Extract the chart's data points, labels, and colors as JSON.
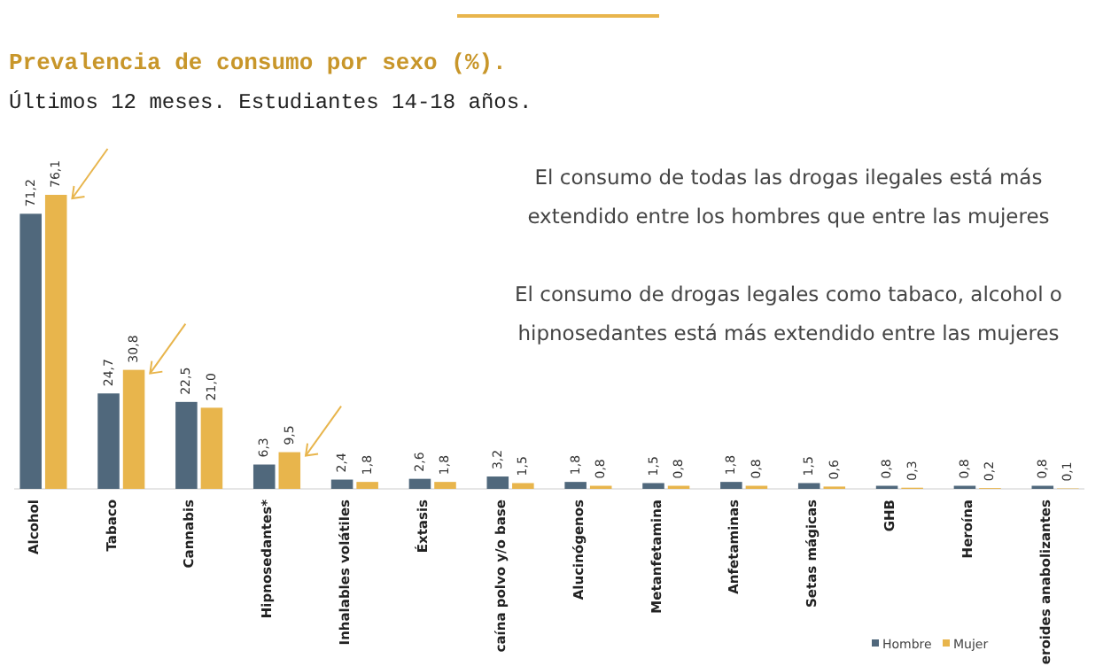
{
  "chart_data": {
    "type": "bar",
    "title": "Prevalencia de consumo por sexo (%).",
    "subtitle": "Últimos 12 meses. Estudiantes 14-18 años.",
    "categories": [
      "Alcohol",
      "Tabaco",
      "Cannabis",
      "Hipnosedantes*",
      "Inhalables volátiles",
      "Éxtasis",
      "caína polvo y/o base",
      "Alucinógenos",
      "Metanfetamina",
      "Anfetaminas",
      "Setas mágicas",
      "GHB",
      "Heroína",
      "eroides anabolizantes"
    ],
    "series": [
      {
        "name": "Hombre",
        "color": "#50687c",
        "values": [
          71.2,
          24.7,
          22.5,
          6.3,
          2.4,
          2.6,
          3.2,
          1.8,
          1.5,
          1.8,
          1.5,
          0.8,
          0.8,
          0.8
        ],
        "value_labels": [
          "71,2",
          "24,7",
          "22,5",
          "6,3",
          "2,4",
          "2,6",
          "3,2",
          "1,8",
          "1,5",
          "1,8",
          "1,5",
          "0,8",
          "0,8",
          "0,8"
        ]
      },
      {
        "name": "Mujer",
        "color": "#e8b54c",
        "values": [
          76.1,
          30.8,
          21.0,
          9.5,
          1.8,
          1.8,
          1.5,
          0.8,
          0.8,
          0.8,
          0.6,
          0.3,
          0.2,
          0.1
        ],
        "value_labels": [
          "76,1",
          "30,8",
          "21,0",
          "9,5",
          "1,8",
          "1,8",
          "1,5",
          "0,8",
          "0,8",
          "0,8",
          "0,6",
          "0,3",
          "0,2",
          "0,1"
        ]
      }
    ],
    "legend": "bottom right",
    "annotations": [
      "El consumo de todas las drogas ilegales está más extendido entre los hombres que entre las mujeres",
      "El consumo de drogas legales como tabaco, alcohol o hipnosedantes está más extendido entre las mujeres"
    ]
  }
}
